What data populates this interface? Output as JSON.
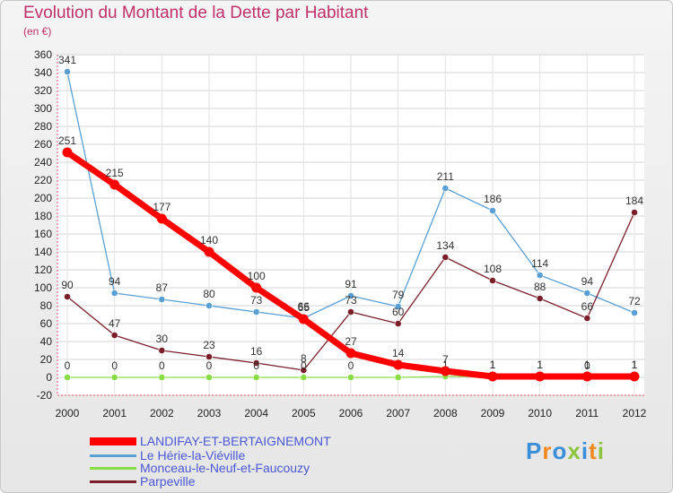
{
  "page": {
    "title": "Evolution du Montant de la Dette par Habitant",
    "unit": "(en €)",
    "brand": "Proxiti"
  },
  "chart_data": {
    "type": "line",
    "title": "Evolution du Montant de la Dette par Habitant",
    "ylabel": "(en €)",
    "xlabel": "",
    "x": [
      "2000",
      "2001",
      "2002",
      "2003",
      "2004",
      "2005",
      "2006",
      "2007",
      "2008",
      "2009",
      "2010",
      "2011",
      "2012"
    ],
    "ylim": [
      -20,
      360
    ],
    "yticks": [
      -20,
      0,
      20,
      40,
      60,
      80,
      100,
      120,
      140,
      160,
      180,
      200,
      220,
      240,
      260,
      280,
      300,
      320,
      340,
      360
    ],
    "grid": true,
    "legend_position": "bottom-left",
    "series": [
      {
        "name": "LANDIFAY-ET-BERTAIGNEMONT",
        "color": "#ff0000",
        "values": [
          251,
          215,
          177,
          140,
          100,
          65,
          27,
          14,
          7,
          1,
          1,
          1,
          1
        ],
        "labels": [
          "251",
          "215",
          "177",
          "140",
          "100",
          "65",
          "27",
          "14",
          "7",
          "1",
          "1",
          "1",
          "1"
        ]
      },
      {
        "name": "Le Hérie-la-Viéville",
        "color": "#5a9fd4",
        "values": [
          341,
          94,
          87,
          80,
          73,
          66,
          91,
          79,
          211,
          186,
          114,
          94,
          72
        ],
        "labels": [
          "341",
          "94",
          "87",
          "80",
          "73",
          "66",
          "91",
          "79",
          "211",
          "186",
          "114",
          "94",
          "72"
        ]
      },
      {
        "name": "Monceau-le-Neuf-et-Faucouzy",
        "color": "#88dd44",
        "values": [
          0,
          0,
          0,
          0,
          0,
          0,
          0,
          0,
          1,
          1,
          1,
          0,
          1
        ],
        "labels": [
          "0",
          "0",
          "0",
          "0",
          "0",
          "0",
          "0",
          "0",
          "1",
          "1",
          "1",
          "0",
          "1"
        ]
      },
      {
        "name": "Parpeville",
        "color": "#7a1f2a",
        "values": [
          90,
          47,
          30,
          23,
          16,
          8,
          73,
          60,
          134,
          108,
          88,
          66,
          184
        ],
        "labels": [
          "90",
          "47",
          "30",
          "23",
          "16",
          "8",
          "73",
          "60",
          "134",
          "108",
          "88",
          "66",
          "184"
        ]
      }
    ]
  }
}
